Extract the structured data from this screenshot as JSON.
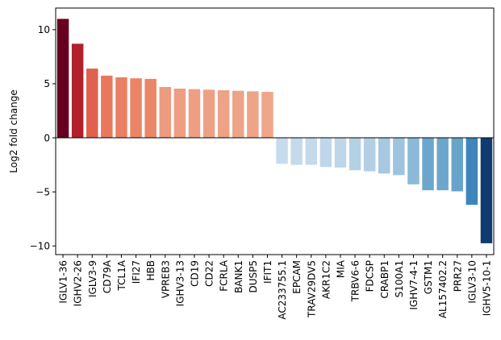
{
  "chart_data": {
    "type": "bar",
    "ylabel": "Log2 fold change",
    "xlabel": "",
    "ylim": [
      -10.8,
      12.0
    ],
    "yticks": [
      -10,
      -5,
      0,
      5,
      10
    ],
    "ytick_labels": [
      "−10",
      "−5",
      "0",
      "5",
      "10"
    ],
    "grid": false,
    "legend": "none",
    "colormap": "RdBu_r",
    "categories": [
      "IGLV1-36",
      "IGHV2-26",
      "IGLV3-9",
      "CD79A",
      "TCL1A",
      "IFI27",
      "HBB",
      "VPREB3",
      "IGHV3-13",
      "CD19",
      "CD22",
      "FCRLA",
      "BANK1",
      "DUSP5",
      "IFIT1",
      "AC233755.1",
      "EPCAM",
      "TRAV29DV5",
      "AKR1C2",
      "MIA",
      "TRBV6-6",
      "FDCSP",
      "CRABP1",
      "S100A1",
      "IGHV7-4-1",
      "GSTM1",
      "AL157402.2",
      "PRR27",
      "IGLV3-10",
      "IGHV5-10-1"
    ],
    "values": [
      11.0,
      8.7,
      6.4,
      5.75,
      5.6,
      5.5,
      5.45,
      4.7,
      4.55,
      4.5,
      4.45,
      4.4,
      4.35,
      4.3,
      4.25,
      -2.4,
      -2.5,
      -2.5,
      -2.7,
      -2.75,
      -3.0,
      -3.1,
      -3.3,
      -3.45,
      -4.3,
      -4.85,
      -4.85,
      -4.95,
      -6.2,
      -9.75
    ],
    "colors": [
      "#67001f",
      "#b2202b",
      "#e1614f",
      "#e8785c",
      "#ea8063",
      "#eb8467",
      "#eb8668",
      "#ee9a7e",
      "#ee9e82",
      "#ee9f83",
      "#eea085",
      "#eea286",
      "#eea387",
      "#efa489",
      "#efa68a",
      "#c6dbec",
      "#c4daeb",
      "#c4daeb",
      "#bfd7ea",
      "#bed6e9",
      "#b5d1e6",
      "#b2cfe5",
      "#a6c8e0",
      "#9ec3de",
      "#8bb9d7",
      "#6da6cc",
      "#6da6cc",
      "#68a3ca",
      "#3f85bc",
      "#0f3b71"
    ]
  }
}
